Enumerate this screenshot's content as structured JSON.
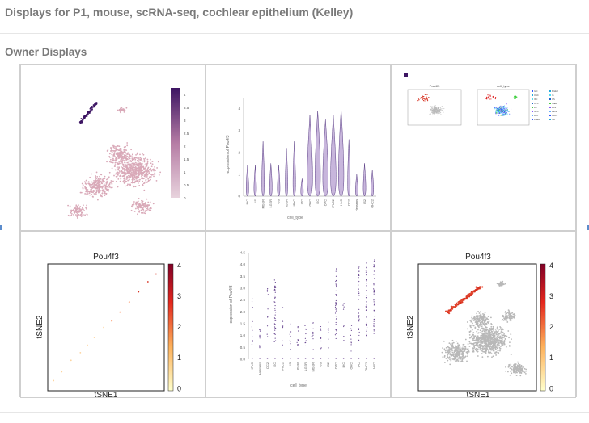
{
  "page": {
    "title": "Displays for P1, mouse, scRNA-seq, cochlear epithelium (Kelley)",
    "section_title": "Owner Displays"
  },
  "colors": {
    "pink_cells": "#d9a9b8",
    "purple_dark": "#3d1563",
    "violin_fill": "#c8b6dc",
    "gray_cells": "#b8b8b8",
    "red_cells": "#d7301f"
  },
  "displays": [
    {
      "id": "display-1",
      "chart_data": {
        "type": "scatter",
        "colorbar_ticks": [
          "4",
          "3.5",
          "3",
          "2.5",
          "2",
          "1.5",
          "1",
          "0.5",
          "0"
        ]
      }
    },
    {
      "id": "display-2",
      "chart_data": {
        "type": "violin",
        "ylabel": "expression of Pou4f3",
        "xlabel": "cell_type",
        "yticks": [
          "4",
          "3",
          "2",
          "1",
          "0"
        ],
        "categories": [
          "IHC",
          "IS",
          "MGER",
          "LGER",
          "OS",
          "IGER",
          "IPhC",
          "IPC",
          "OHC",
          "DC",
          "OPC",
          "IPhC2",
          "HeC",
          "DC2",
          "Hensens",
          "IS2",
          "OHC2"
        ],
        "values": [
          1.4,
          1.4,
          2.5,
          1.5,
          1.4,
          2.2,
          2.5,
          0.8,
          3.7,
          3.9,
          3.5,
          3.7,
          4.0,
          2.6,
          1.0,
          1.5,
          1.2
        ]
      }
    },
    {
      "id": "display-3",
      "chart_data": {
        "type": "scatter",
        "panels": [
          "Pou4f3",
          "cell_type"
        ],
        "legend": [
          "IHC",
          "OHC",
          "IPC",
          "OPC",
          "DC",
          "IPhC",
          "HeC",
          "LGER",
          "MGER",
          "IS",
          "OS",
          "IGER",
          "DC2",
          "Hens",
          "OHC2",
          "IS2"
        ]
      }
    },
    {
      "id": "display-4",
      "chart_data": {
        "type": "scatter",
        "title": "Pou4f3",
        "xlabel": "tSNE1",
        "ylabel": "tSNE2",
        "colorbar_ticks": [
          "4",
          "3",
          "2",
          "1",
          "0"
        ],
        "points": [
          [
            0.05,
            0.08
          ],
          [
            0.12,
            0.15
          ],
          [
            0.2,
            0.24
          ],
          [
            0.28,
            0.3
          ],
          [
            0.34,
            0.36
          ],
          [
            0.4,
            0.42
          ],
          [
            0.48,
            0.5
          ],
          [
            0.55,
            0.55
          ],
          [
            0.62,
            0.62
          ],
          [
            0.7,
            0.7
          ],
          [
            0.78,
            0.78
          ],
          [
            0.86,
            0.86
          ],
          [
            0.93,
            0.92
          ]
        ]
      }
    },
    {
      "id": "display-5",
      "chart_data": {
        "type": "strip",
        "ylabel": "expression of Pou4f3",
        "xlabel": "cell_type",
        "yticks": [
          "4.5",
          "4.0",
          "3.5",
          "3.0",
          "2.5",
          "2.0",
          "1.5",
          "1.0",
          "0.5",
          "0.0"
        ],
        "categories": [
          "IPhC",
          "Hensens",
          "DC2",
          "DC",
          "IPhC2",
          "IS",
          "IGER",
          "LGER",
          "MGER",
          "OS",
          "IS2",
          "OPC",
          "IHC",
          "OHC",
          "IPC",
          "OHC2",
          "HeC"
        ],
        "values": [
          2.9,
          1.3,
          3.0,
          3.6,
          2.4,
          1.5,
          1.4,
          1.5,
          1.6,
          1.4,
          1.8,
          4.2,
          2.5,
          1.5,
          3.9,
          4.1,
          4.2
        ]
      }
    },
    {
      "id": "display-6",
      "chart_data": {
        "type": "scatter",
        "title": "Pou4f3",
        "xlabel": "tSNE1",
        "ylabel": "tSNE2",
        "colorbar_ticks": [
          "4",
          "3",
          "2",
          "1",
          "0"
        ]
      }
    }
  ]
}
